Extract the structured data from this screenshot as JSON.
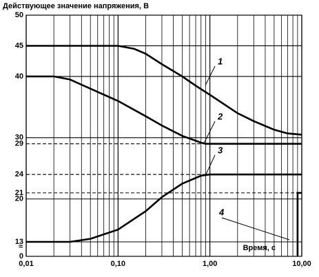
{
  "chart_data": {
    "type": "line",
    "title": "Действующее значение напряжения, В",
    "x_label": "Время, с",
    "x_scale": "log",
    "minor_grid": true,
    "axis_break": [
      0,
      13
    ],
    "xlim": [
      0.01,
      10
    ],
    "xticks": [
      {
        "value": 0.01,
        "label": "0,01"
      },
      {
        "value": 0.1,
        "label": "0,10"
      },
      {
        "value": 1,
        "label": "1,00"
      },
      {
        "value": 10,
        "label": "10,00"
      }
    ],
    "ylim": [
      0,
      50
    ],
    "yticks": [
      0,
      13,
      20,
      21,
      24,
      29,
      30,
      40,
      45,
      50
    ],
    "dashed_grid": [
      29,
      24,
      21
    ],
    "series": [
      {
        "color": "#000000",
        "x": [
          0.01,
          0.1,
          0.15,
          0.2,
          0.3,
          0.5,
          0.7,
          1,
          2,
          3,
          5,
          7,
          10
        ],
        "values": [
          45,
          45,
          44.5,
          43.7,
          42,
          40,
          38.5,
          37,
          34,
          32.7,
          31.3,
          30.7,
          30.5
        ]
      },
      {
        "color": "#000000",
        "x": [
          0.01,
          0.02,
          0.03,
          0.05,
          0.1,
          0.2,
          0.3,
          0.5,
          0.8,
          0.9,
          10
        ],
        "values": [
          40,
          40,
          39.5,
          38,
          36,
          33.5,
          32,
          30.3,
          29.2,
          29,
          29
        ]
      },
      {
        "color": "#000000",
        "x": [
          0.01,
          0.03,
          0.05,
          0.1,
          0.2,
          0.3,
          0.5,
          0.8,
          1,
          10
        ],
        "values": [
          13,
          13,
          13.5,
          15,
          18,
          20.3,
          22.5,
          23.8,
          24,
          24
        ]
      },
      {
        "color": "#000000",
        "x": [
          9,
          9,
          10
        ],
        "values": [
          0,
          21,
          21
        ]
      }
    ],
    "annotations": [
      {
        "text": "1"
      },
      {
        "text": "2"
      },
      {
        "text": "3"
      },
      {
        "text": "4"
      }
    ]
  }
}
